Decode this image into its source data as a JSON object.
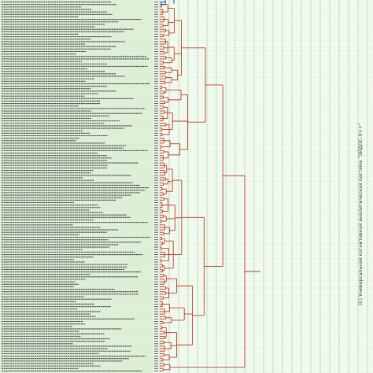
{
  "chart_data": {
    "type": "dendrogram",
    "vertical_text": "(C) Универсальная когнитивная аналитическая система \"ЭЙДОС-Х++\"",
    "grid": true,
    "leaf_count": 150,
    "colors": {
      "background": "#f4fbf2",
      "grid": "#8fd18a",
      "link": "#c0392b",
      "top_link": "#2f4fb5",
      "label_band": "#dff0d8"
    }
  }
}
